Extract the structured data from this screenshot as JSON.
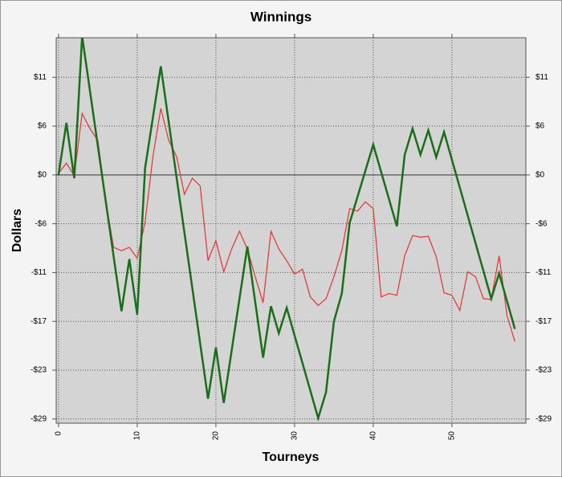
{
  "chart_data": {
    "type": "line",
    "title": "Winnings",
    "x_label": "Tourneys",
    "y_label": "Dollars",
    "xlim": [
      -0.3,
      59.4
    ],
    "xticks": [
      0,
      10,
      20,
      30,
      40,
      50
    ],
    "ylim": [
      -29.5,
      16.3
    ],
    "yticks": [
      {
        "value": 11.6,
        "label": "$11"
      },
      {
        "value": 5.8,
        "label": "$6"
      },
      {
        "value": 0,
        "label": "$0"
      },
      {
        "value": -5.8,
        "label": "-$6"
      },
      {
        "value": -11.6,
        "label": "-$11"
      },
      {
        "value": -17.4,
        "label": "-$17"
      },
      {
        "value": -23.2,
        "label": "-$23"
      },
      {
        "value": -29,
        "label": "-$29"
      }
    ],
    "grid": true,
    "series": [
      {
        "color": "#e83232",
        "x": [
          0,
          1,
          2,
          3,
          4,
          5,
          6,
          7,
          8,
          9,
          10,
          11,
          12,
          13,
          14,
          15,
          16,
          17,
          18,
          19,
          20,
          21,
          22,
          23,
          24,
          25,
          26,
          27,
          28,
          29,
          30,
          31,
          32,
          33,
          34,
          35,
          36,
          37,
          38,
          39,
          40,
          41,
          42,
          43,
          44,
          45,
          46,
          47,
          48,
          49,
          50,
          51,
          52,
          53,
          54,
          55,
          56,
          57,
          58
        ],
        "values": [
          0.2,
          1.4,
          -0.1,
          7.3,
          5.5,
          4.1,
          -3.1,
          -8.6,
          -9.0,
          -8.6,
          -9.9,
          -5.6,
          2.2,
          7.9,
          4.1,
          2.2,
          -2.3,
          -0.4,
          -1.3,
          -10.2,
          -7.8,
          -11.5,
          -8.8,
          -6.7,
          -8.8,
          -12.1,
          -15.2,
          -6.7,
          -8.8,
          -10.2,
          -11.8,
          -11.2,
          -14.5,
          -15.5,
          -14.7,
          -12.1,
          -9.0,
          -4.0,
          -4.3,
          -3.2,
          -4.0,
          -14.5,
          -14.1,
          -14.3,
          -9.6,
          -7.2,
          -7.4,
          -7.3,
          -9.7,
          -14.0,
          -14.3,
          -16.1,
          -11.5,
          -12.1,
          -14.7,
          -14.8,
          -9.6,
          -16.7,
          -19.8
        ]
      },
      {
        "color": "#1a6e1a",
        "x": [
          0,
          1,
          2,
          3,
          8,
          9,
          10,
          11,
          13,
          19,
          20,
          21,
          24,
          26,
          27,
          28,
          29,
          33,
          34,
          35,
          36,
          37,
          40,
          43,
          44,
          45,
          46,
          47,
          48,
          49,
          55,
          56,
          58
        ],
        "values": [
          0,
          6.2,
          -0.4,
          16.5,
          -16.2,
          -10,
          -16.6,
          0.8,
          12.9,
          -26.6,
          -20.5,
          -27.1,
          -8.5,
          -21.7,
          -15.6,
          -18.8,
          -15.8,
          -28.9,
          -25.8,
          -17.4,
          -14.1,
          -5.7,
          3.6,
          -6.1,
          2.4,
          5.5,
          2.4,
          5.3,
          2.1,
          5.1,
          -14.7,
          -11.7,
          -18.3
        ]
      }
    ]
  }
}
